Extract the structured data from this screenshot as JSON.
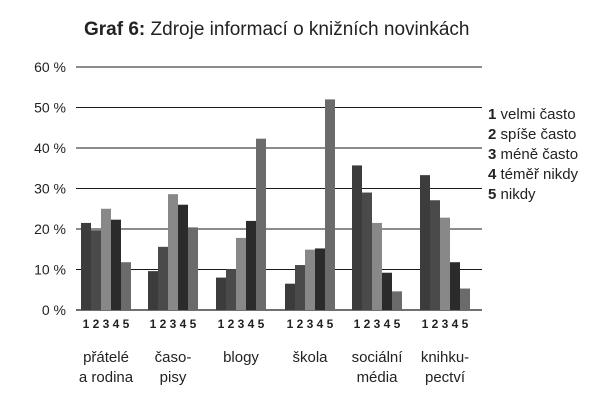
{
  "chart_data": {
    "type": "bar",
    "title": {
      "prefix": "Graf 6:",
      "text": " Zdroje informací o knižních novinkách"
    },
    "yticks": [
      "0 %",
      "10 %",
      "20 %",
      "30 %",
      "40 %",
      "50 %",
      "60 %"
    ],
    "ylim": [
      0,
      60
    ],
    "grid": true,
    "categories": [
      [
        "přátelé",
        "a rodina"
      ],
      [
        "časo-",
        "pisy"
      ],
      [
        "blogy"
      ],
      [
        "škola"
      ],
      [
        "sociální",
        "média"
      ],
      [
        "knihku-",
        "pectví"
      ]
    ],
    "series_numbers": [
      "1",
      "2",
      "3",
      "4",
      "5"
    ],
    "series": [
      {
        "name": "velmi často",
        "number": "1",
        "color": "#3c3c3c",
        "values": [
          21.5,
          9.6,
          8.0,
          6.5,
          35.7,
          33.3
        ]
      },
      {
        "name": "spíše často",
        "number": "2",
        "color": "#4a4a4a",
        "values": [
          19.7,
          15.6,
          10.1,
          11.1,
          29.0,
          27.1
        ]
      },
      {
        "name": "méně často",
        "number": "3",
        "color": "#888888",
        "values": [
          25.0,
          28.6,
          17.8,
          14.9,
          21.5,
          22.8
        ]
      },
      {
        "name": "téměř nikdy",
        "number": "4",
        "color": "#2b2b2b",
        "values": [
          22.3,
          26.0,
          22.0,
          15.2,
          9.2,
          11.8
        ]
      },
      {
        "name": "nikdy",
        "number": "5",
        "color": "#6b6b6b",
        "values": [
          11.8,
          20.4,
          42.3,
          52.0,
          4.6,
          5.3
        ]
      }
    ],
    "legend_position": "right"
  }
}
